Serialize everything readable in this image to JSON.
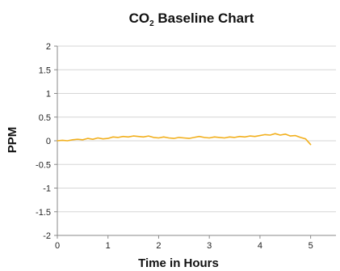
{
  "chart_data": {
    "type": "line",
    "title": "CO",
    "title_subscript": "2",
    "title_rest": " Baseline Chart",
    "xlabel": "Time in Hours",
    "ylabel": "PPM",
    "xlim": [
      0,
      5.5
    ],
    "ylim": [
      -2,
      2
    ],
    "x_ticks": [
      "0",
      "1",
      "2",
      "3",
      "4",
      "5"
    ],
    "x_tick_values": [
      0,
      1,
      2,
      3,
      4,
      5
    ],
    "y_ticks": [
      "2",
      "1.5",
      "1",
      "0.5",
      "0",
      "-0.5",
      "-1",
      "-1.5",
      "-2"
    ],
    "y_tick_values": [
      2,
      1.5,
      1,
      0.5,
      0,
      -0.5,
      -1,
      -1.5,
      -2
    ],
    "grid": "horizontal",
    "series": [
      {
        "color": "#f2b01e",
        "x": [
          0,
          0.1,
          0.2,
          0.3,
          0.4,
          0.5,
          0.6,
          0.7,
          0.8,
          0.9,
          1.0,
          1.1,
          1.2,
          1.3,
          1.4,
          1.5,
          1.6,
          1.7,
          1.8,
          1.9,
          2.0,
          2.1,
          2.2,
          2.3,
          2.4,
          2.5,
          2.6,
          2.7,
          2.8,
          2.9,
          3.0,
          3.1,
          3.2,
          3.3,
          3.4,
          3.5,
          3.6,
          3.7,
          3.8,
          3.9,
          4.0,
          4.1,
          4.2,
          4.3,
          4.4,
          4.5,
          4.6,
          4.7,
          4.8,
          4.9,
          5.0
        ],
        "values": [
          0.0,
          0.01,
          0.0,
          0.02,
          0.03,
          0.02,
          0.05,
          0.03,
          0.06,
          0.04,
          0.05,
          0.08,
          0.07,
          0.09,
          0.08,
          0.1,
          0.09,
          0.08,
          0.1,
          0.07,
          0.06,
          0.08,
          0.06,
          0.05,
          0.07,
          0.06,
          0.05,
          0.07,
          0.09,
          0.07,
          0.06,
          0.08,
          0.07,
          0.06,
          0.08,
          0.07,
          0.09,
          0.08,
          0.1,
          0.09,
          0.11,
          0.13,
          0.12,
          0.15,
          0.12,
          0.14,
          0.1,
          0.11,
          0.07,
          0.04,
          -0.08
        ]
      }
    ]
  }
}
